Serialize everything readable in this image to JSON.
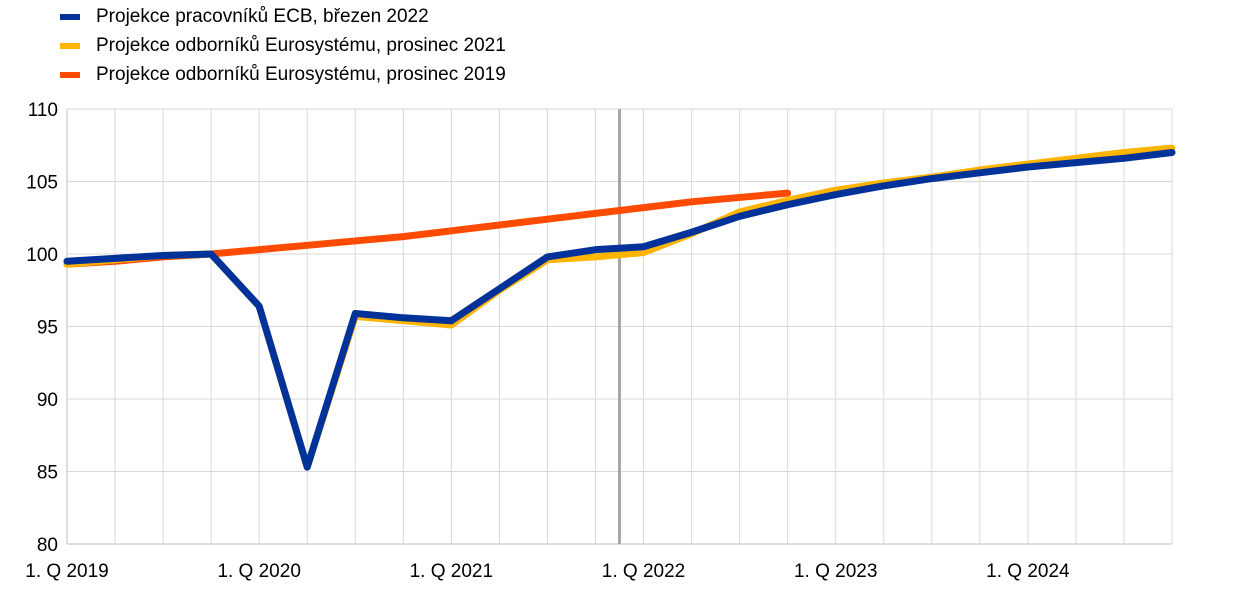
{
  "chart_data": {
    "type": "line",
    "title": "",
    "xlabel": "",
    "ylabel": "",
    "ylim": [
      80,
      110
    ],
    "yticks": [
      "80",
      "85",
      "90",
      "95",
      "100",
      "105",
      "110"
    ],
    "grid": true,
    "legend_position": "top-left",
    "x": [
      "1Q2019",
      "2Q2019",
      "3Q2019",
      "4Q2019",
      "1Q2020",
      "2Q2020",
      "3Q2020",
      "4Q2020",
      "1Q2021",
      "2Q2021",
      "3Q2021",
      "4Q2021",
      "1Q2022",
      "2Q2022",
      "3Q2022",
      "4Q2022",
      "1Q2023",
      "2Q2023",
      "3Q2023",
      "4Q2023",
      "1Q2024",
      "2Q2024",
      "3Q2024",
      "4Q2024"
    ],
    "xtick_labels": [
      {
        "index": 0,
        "label": "1. Q 2019"
      },
      {
        "index": 4,
        "label": "1. Q 2020"
      },
      {
        "index": 8,
        "label": "1. Q 2021"
      },
      {
        "index": 12,
        "label": "1. Q 2022"
      },
      {
        "index": 16,
        "label": "1. Q 2023"
      },
      {
        "index": 20,
        "label": "1. Q 2024"
      }
    ],
    "vertical_marker": {
      "between": [
        "4Q2021",
        "1Q2022"
      ],
      "color": "#A6A6A6"
    },
    "series": [
      {
        "name": "Projekce odborníků Eurosystému, prosinec 2019",
        "color": "#FF4B00",
        "values": [
          99.3,
          99.5,
          99.8,
          100.0,
          100.3,
          100.6,
          100.9,
          101.2,
          101.6,
          102.0,
          102.4,
          102.8,
          103.2,
          103.6,
          103.9,
          104.2,
          null,
          null,
          null,
          null,
          null,
          null,
          null,
          null
        ]
      },
      {
        "name": "Projekce odborníků Eurosystému, prosinec 2021",
        "color": "#FFB400",
        "values": [
          99.3,
          99.6,
          99.9,
          100.0,
          96.4,
          85.3,
          95.7,
          95.4,
          95.1,
          97.5,
          99.6,
          99.8,
          100.1,
          101.4,
          102.9,
          103.7,
          104.4,
          104.9,
          105.3,
          105.8,
          106.2,
          106.6,
          107.0,
          107.3
        ]
      },
      {
        "name": "Projekce pracovníků ECB, březen 2022",
        "color": "#003299",
        "values": [
          99.5,
          99.7,
          99.9,
          100.0,
          96.4,
          85.3,
          95.9,
          95.6,
          95.4,
          97.6,
          99.8,
          100.3,
          100.5,
          101.5,
          102.6,
          103.4,
          104.1,
          104.7,
          105.2,
          105.6,
          106.0,
          106.3,
          106.6,
          107.0
        ]
      }
    ],
    "legend": [
      {
        "label": "Projekce pracovníků ECB, březen 2022",
        "color": "#003299"
      },
      {
        "label": "Projekce odborníků Eurosystému, prosinec 2021",
        "color": "#FFB400"
      },
      {
        "label": "Projekce odborníků Eurosystému, prosinec 2019",
        "color": "#FF4B00"
      }
    ]
  }
}
